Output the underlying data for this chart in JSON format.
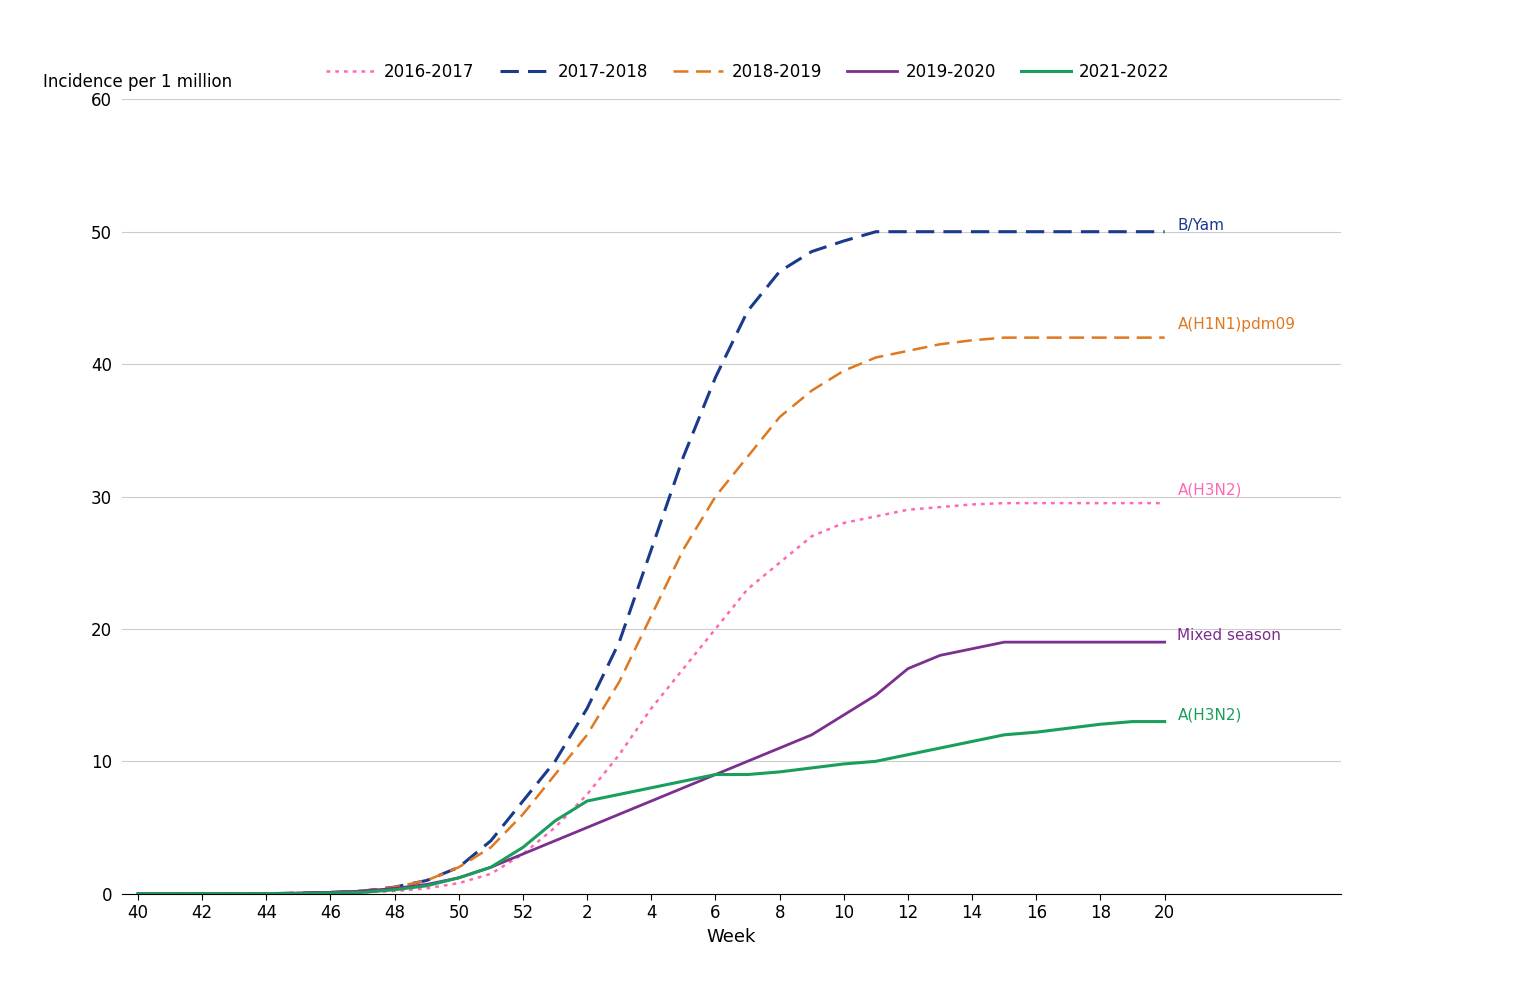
{
  "title": "",
  "ylabel": "Incidence per 1 million",
  "xlabel": "Week",
  "ylim": [
    0,
    60
  ],
  "yticks": [
    0,
    10,
    20,
    30,
    40,
    50,
    60
  ],
  "background_color": "#ffffff",
  "series": [
    {
      "label": "2016-2017",
      "annotation": "A(H3N2)",
      "color": "#FF69B4",
      "linestyle": "dotted",
      "linewidth": 1.8,
      "weeks": [
        40,
        41,
        42,
        43,
        44,
        45,
        46,
        47,
        48,
        49,
        50,
        51,
        52,
        1,
        2,
        3,
        4,
        5,
        6,
        7,
        8,
        9,
        10,
        11,
        12,
        13,
        14,
        15,
        16,
        17,
        18,
        19,
        20
      ],
      "values": [
        0,
        0,
        0,
        0,
        0,
        0,
        0.05,
        0.1,
        0.2,
        0.4,
        0.8,
        1.5,
        3.0,
        5.0,
        7.5,
        10.5,
        14,
        17,
        20,
        23,
        25,
        27,
        28,
        28.5,
        29,
        29.2,
        29.4,
        29.5,
        29.5,
        29.5,
        29.5,
        29.5,
        29.5
      ]
    },
    {
      "label": "2017-2018",
      "annotation": "B/Yam",
      "color": "#1A3A8C",
      "linestyle": "dashed",
      "linewidth": 2.2,
      "weeks": [
        40,
        41,
        42,
        43,
        44,
        45,
        46,
        47,
        48,
        49,
        50,
        51,
        52,
        1,
        2,
        3,
        4,
        5,
        6,
        7,
        8,
        9,
        10,
        11,
        12,
        13,
        14,
        15,
        16,
        17,
        18,
        19,
        20
      ],
      "values": [
        0,
        0,
        0,
        0,
        0,
        0.05,
        0.1,
        0.2,
        0.5,
        1.0,
        2.0,
        4.0,
        7.0,
        10,
        14,
        19,
        26,
        33,
        39,
        44,
        47,
        48.5,
        49.3,
        50,
        50,
        50,
        50,
        50,
        50,
        50,
        50,
        50,
        50
      ]
    },
    {
      "label": "2018-2019",
      "annotation": "A(H1N1)pdm09",
      "color": "#E07820",
      "linestyle": "dashed",
      "linewidth": 1.8,
      "weeks": [
        40,
        41,
        42,
        43,
        44,
        45,
        46,
        47,
        48,
        49,
        50,
        51,
        52,
        1,
        2,
        3,
        4,
        5,
        6,
        7,
        8,
        9,
        10,
        11,
        12,
        13,
        14,
        15,
        16,
        17,
        18,
        19,
        20
      ],
      "values": [
        0,
        0,
        0,
        0,
        0,
        0.05,
        0.1,
        0.2,
        0.5,
        1.0,
        2.0,
        3.5,
        6.0,
        9.0,
        12,
        16,
        21,
        26,
        30,
        33,
        36,
        38,
        39.5,
        40.5,
        41,
        41.5,
        41.8,
        42,
        42,
        42,
        42,
        42,
        42
      ]
    },
    {
      "label": "2019-2020",
      "annotation": "Mixed season",
      "color": "#7B2F8E",
      "linestyle": "solid",
      "linewidth": 2.0,
      "weeks": [
        40,
        41,
        42,
        43,
        44,
        45,
        46,
        47,
        48,
        49,
        50,
        51,
        52,
        1,
        2,
        3,
        4,
        5,
        6,
        7,
        8,
        9,
        10,
        11,
        12,
        13,
        14,
        15,
        16,
        17,
        18,
        19,
        20
      ],
      "values": [
        0,
        0,
        0,
        0,
        0,
        0.05,
        0.1,
        0.2,
        0.4,
        0.7,
        1.2,
        2.0,
        3.0,
        4.0,
        5.0,
        6.0,
        7.0,
        8.0,
        9.0,
        10,
        11,
        12,
        13.5,
        15,
        17,
        18,
        18.5,
        19,
        19,
        19,
        19,
        19,
        19
      ]
    },
    {
      "label": "2021-2022",
      "annotation": "A(H3N2)",
      "color": "#1A9E5C",
      "linestyle": "solid",
      "linewidth": 2.2,
      "weeks": [
        40,
        41,
        42,
        43,
        44,
        45,
        46,
        47,
        48,
        49,
        50,
        51,
        52,
        1,
        2,
        3,
        4,
        5,
        6,
        7,
        8,
        9,
        10,
        11,
        12,
        13,
        14,
        15,
        16,
        17,
        18,
        19,
        20
      ],
      "values": [
        0,
        0,
        0,
        0,
        0,
        0,
        0.05,
        0.1,
        0.3,
        0.6,
        1.2,
        2.0,
        3.5,
        5.5,
        7.0,
        7.5,
        8.0,
        8.5,
        9.0,
        9.0,
        9.2,
        9.5,
        9.8,
        10,
        10.5,
        11,
        11.5,
        12,
        12.2,
        12.5,
        12.8,
        13,
        13
      ]
    }
  ],
  "x_ticks_left": [
    40,
    42,
    44,
    46,
    48,
    50,
    52
  ],
  "x_ticks_right": [
    2,
    4,
    6,
    8,
    10,
    12,
    14,
    16,
    18,
    20
  ],
  "ann_y": {
    "2017-2018": 50.5,
    "2018-2019": 43.0,
    "2016-2017": 30.5,
    "2019-2020": 19.5,
    "2021-2022": 13.5
  },
  "ann_texts": {
    "2016-2017": "A(H3N2)",
    "2017-2018": "B/Yam",
    "2018-2019": "A(H1N1)pdm09",
    "2019-2020": "Mixed season",
    "2021-2022": "A(H3N2)"
  }
}
